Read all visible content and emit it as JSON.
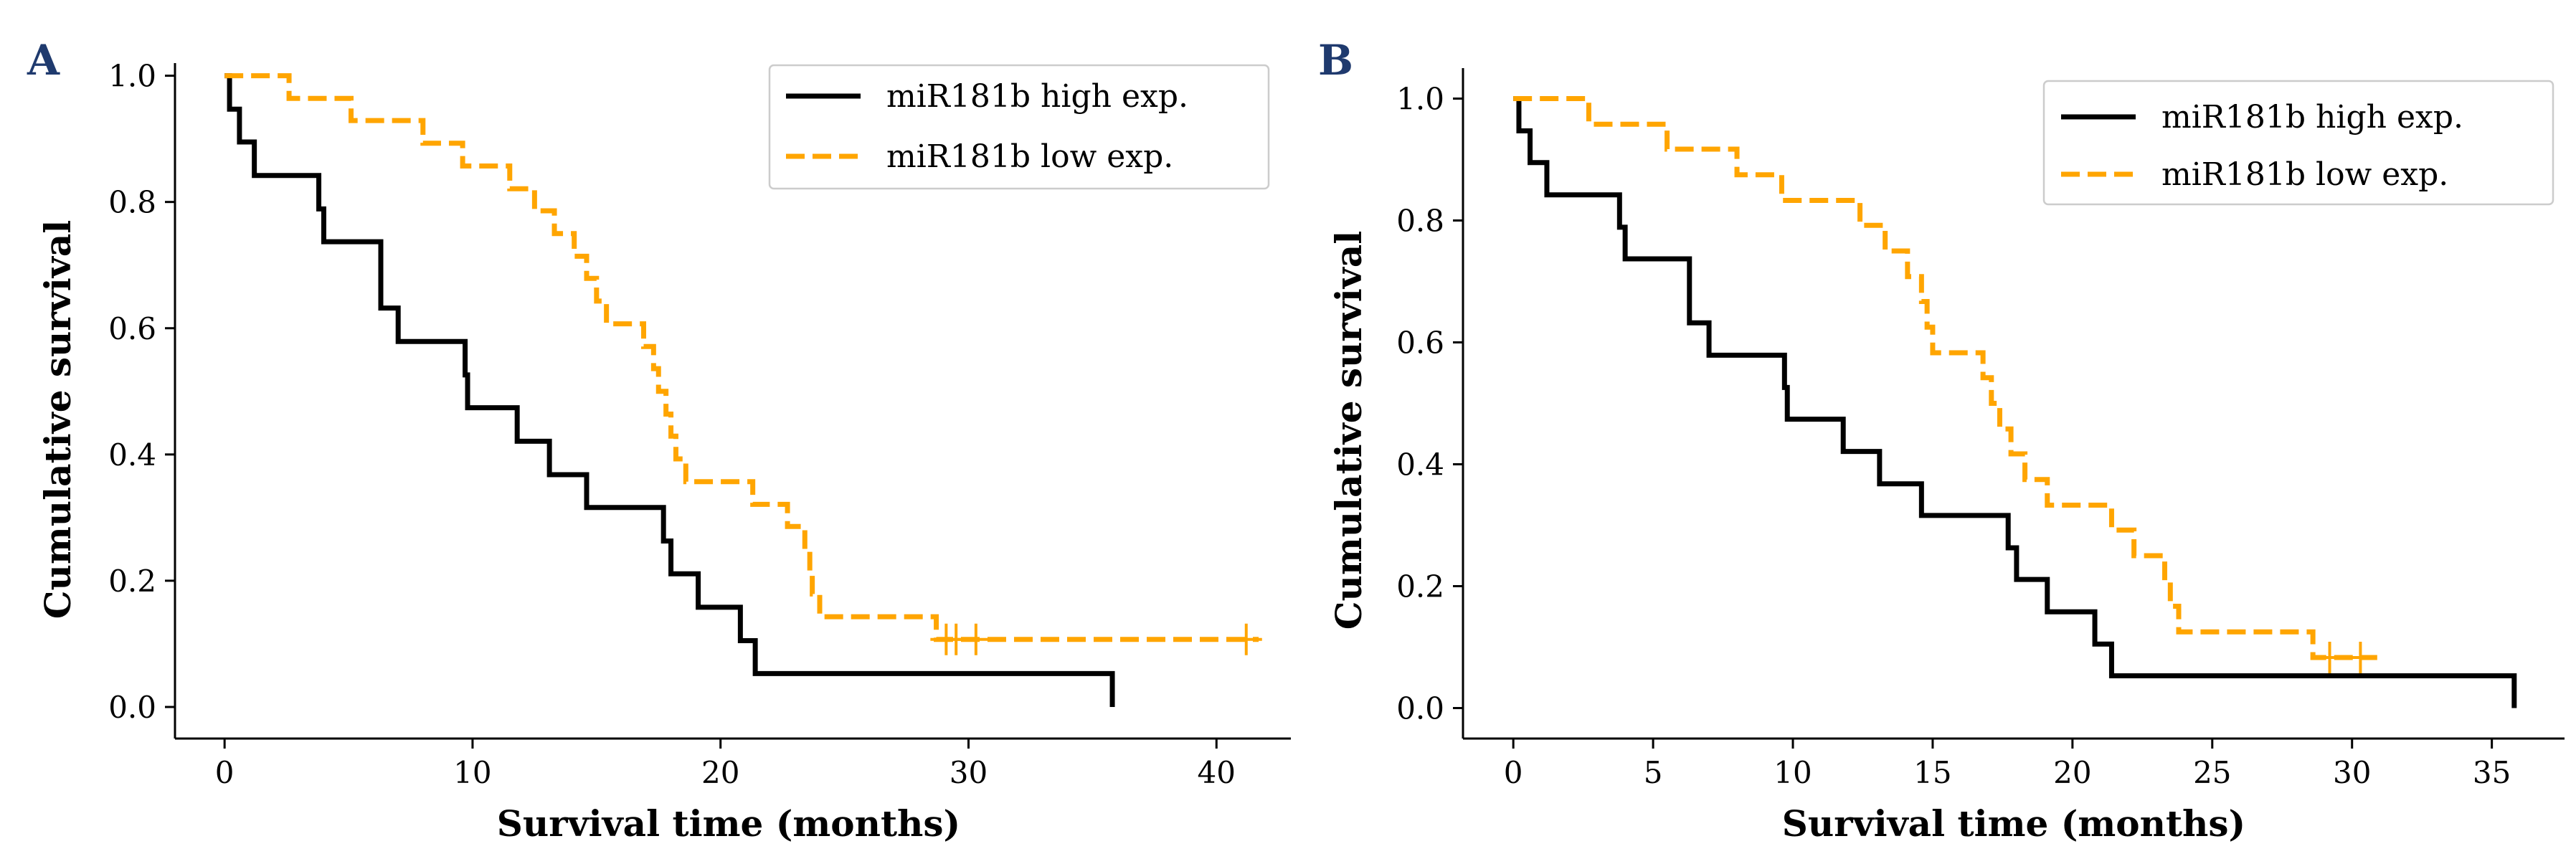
{
  "chart_data": [
    {
      "panel": "A",
      "type": "line",
      "xlabel": "Survival time (months)",
      "ylabel": "Cumulative survival",
      "xlim": [
        -2,
        43
      ],
      "ylim": [
        -0.05,
        1.02
      ],
      "xticks": [
        0,
        10,
        20,
        30,
        40
      ],
      "xtick_labels": [
        "0",
        "10",
        "20",
        "30",
        "40"
      ],
      "yticks": [
        0.0,
        0.2,
        0.4,
        0.6,
        0.8,
        1.0
      ],
      "ytick_labels": [
        "0.0",
        "0.2",
        "0.4",
        "0.6",
        "0.8",
        "1.0"
      ],
      "grid": false,
      "legend_position": "top-right",
      "series": [
        {
          "name": "miR181b high exp.",
          "color": "#000000",
          "dash": "solid",
          "steps": [
            [
              0,
              1.0
            ],
            [
              0.2,
              0.947
            ],
            [
              0.6,
              0.895
            ],
            [
              1.2,
              0.842
            ],
            [
              3.8,
              0.789
            ],
            [
              4.0,
              0.737
            ],
            [
              6.3,
              0.632
            ],
            [
              7.0,
              0.579
            ],
            [
              9.7,
              0.526
            ],
            [
              9.8,
              0.474
            ],
            [
              11.8,
              0.421
            ],
            [
              13.1,
              0.368
            ],
            [
              14.6,
              0.316
            ],
            [
              17.7,
              0.263
            ],
            [
              18.0,
              0.211
            ],
            [
              19.1,
              0.158
            ],
            [
              20.8,
              0.105
            ],
            [
              21.4,
              0.053
            ],
            [
              35.8,
              0.0
            ]
          ],
          "end": 35.8,
          "censored": []
        },
        {
          "name": "miR181b low exp.",
          "color": "#FFA500",
          "dash": "dashed",
          "steps": [
            [
              0,
              1.0
            ],
            [
              2.6,
              0.964
            ],
            [
              5.1,
              0.929
            ],
            [
              8.0,
              0.893
            ],
            [
              9.6,
              0.857
            ],
            [
              11.5,
              0.821
            ],
            [
              12.5,
              0.786
            ],
            [
              13.3,
              0.75
            ],
            [
              14.1,
              0.714
            ],
            [
              14.6,
              0.679
            ],
            [
              15.0,
              0.643
            ],
            [
              15.4,
              0.607
            ],
            [
              16.9,
              0.571
            ],
            [
              17.3,
              0.536
            ],
            [
              17.5,
              0.5
            ],
            [
              17.8,
              0.464
            ],
            [
              18.0,
              0.429
            ],
            [
              18.2,
              0.393
            ],
            [
              18.6,
              0.357
            ],
            [
              21.3,
              0.321
            ],
            [
              22.7,
              0.286
            ],
            [
              23.4,
              0.25
            ],
            [
              23.6,
              0.214
            ],
            [
              23.7,
              0.179
            ],
            [
              24.0,
              0.143
            ],
            [
              28.7,
              0.107
            ]
          ],
          "end": 41.7,
          "censored": [
            29.1,
            29.5,
            30.3,
            41.2
          ]
        }
      ]
    },
    {
      "panel": "B",
      "type": "line",
      "xlabel": "Survival time (months)",
      "ylabel": "Cumulative survival",
      "xlim": [
        -1.8,
        37.6
      ],
      "ylim": [
        -0.05,
        1.05
      ],
      "xticks": [
        0,
        5,
        10,
        15,
        20,
        25,
        30,
        35
      ],
      "xtick_labels": [
        "0",
        "5",
        "10",
        "15",
        "20",
        "25",
        "30",
        "35"
      ],
      "yticks": [
        0.0,
        0.2,
        0.4,
        0.6,
        0.8,
        1.0
      ],
      "ytick_labels": [
        "0.0",
        "0.2",
        "0.4",
        "0.6",
        "0.8",
        "1.0"
      ],
      "grid": false,
      "legend_position": "top-right",
      "series": [
        {
          "name": "miR181b high exp.",
          "color": "#000000",
          "dash": "solid",
          "steps": [
            [
              0,
              1.0
            ],
            [
              0.2,
              0.947
            ],
            [
              0.6,
              0.895
            ],
            [
              1.2,
              0.842
            ],
            [
              3.8,
              0.789
            ],
            [
              4.0,
              0.737
            ],
            [
              6.3,
              0.632
            ],
            [
              7.0,
              0.579
            ],
            [
              9.7,
              0.526
            ],
            [
              9.8,
              0.474
            ],
            [
              11.8,
              0.421
            ],
            [
              13.1,
              0.368
            ],
            [
              14.6,
              0.316
            ],
            [
              17.7,
              0.263
            ],
            [
              18.0,
              0.211
            ],
            [
              19.1,
              0.158
            ],
            [
              20.8,
              0.105
            ],
            [
              21.4,
              0.053
            ],
            [
              35.8,
              0.0
            ]
          ],
          "end": 35.8,
          "censored": []
        },
        {
          "name": "miR181b low exp.",
          "color": "#FFA500",
          "dash": "dashed",
          "steps": [
            [
              0,
              1.0
            ],
            [
              2.7,
              0.958
            ],
            [
              5.5,
              0.917
            ],
            [
              8.0,
              0.875
            ],
            [
              9.6,
              0.833
            ],
            [
              12.4,
              0.792
            ],
            [
              13.3,
              0.75
            ],
            [
              14.1,
              0.708
            ],
            [
              14.6,
              0.667
            ],
            [
              14.8,
              0.625
            ],
            [
              15.0,
              0.583
            ],
            [
              16.8,
              0.542
            ],
            [
              17.1,
              0.5
            ],
            [
              17.4,
              0.458
            ],
            [
              17.8,
              0.417
            ],
            [
              18.3,
              0.375
            ],
            [
              19.1,
              0.333
            ],
            [
              21.4,
              0.292
            ],
            [
              22.2,
              0.25
            ],
            [
              23.3,
              0.208
            ],
            [
              23.5,
              0.167
            ],
            [
              23.8,
              0.125
            ],
            [
              28.6,
              0.083
            ]
          ],
          "end": 30.9,
          "censored": [
            29.2,
            30.3
          ]
        }
      ]
    }
  ],
  "panels": [
    {
      "label": "A"
    },
    {
      "label": "B"
    }
  ]
}
